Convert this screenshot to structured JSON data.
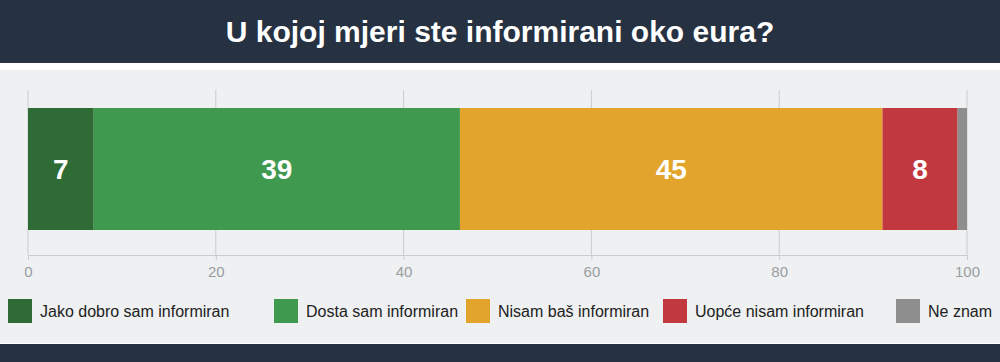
{
  "chart_data": {
    "type": "bar",
    "title": "U kojoj mjeri ste informirani oko eura?",
    "orientation": "horizontal",
    "stacked": true,
    "data_labels": true,
    "grid": true,
    "legend": "bottom",
    "categories": [
      null
    ],
    "series": [
      {
        "name": "Jako dobro sam informiran",
        "color": "#2e6b35",
        "values": [
          7
        ],
        "value_labels": [
          "7"
        ]
      },
      {
        "name": "Dosta sam informiran",
        "color": "#3f9a50",
        "values": [
          39
        ],
        "value_labels": [
          "39"
        ]
      },
      {
        "name": "Nisam baš informiran",
        "color": "#e2a42b",
        "values": [
          45
        ],
        "value_labels": [
          "45"
        ]
      },
      {
        "name": "Uopće nisam informiran",
        "color": "#c1393f",
        "values": [
          8
        ],
        "value_labels": [
          "8"
        ]
      },
      {
        "name": "Ne znam",
        "color": "#8e8e8e",
        "values": [
          1
        ],
        "value_labels": [
          null
        ]
      }
    ],
    "xlim": [
      0,
      100
    ],
    "xticks": [
      0,
      20,
      40,
      60,
      80,
      100
    ]
  }
}
